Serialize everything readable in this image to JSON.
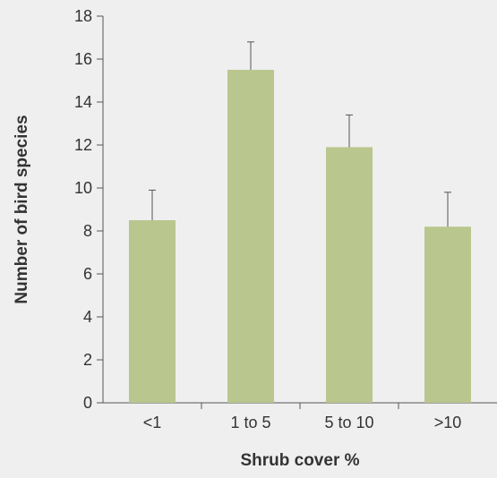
{
  "chart_data": {
    "type": "bar",
    "title": "",
    "xlabel": "Shrub cover %",
    "ylabel": "Number of bird species",
    "categories": [
      "<1",
      "1 to 5",
      "5 to 10",
      ">10"
    ],
    "values": [
      8.5,
      15.5,
      11.9,
      8.2
    ],
    "error_upper": [
      9.9,
      16.8,
      13.4,
      9.8
    ],
    "ylim": [
      0,
      18
    ],
    "yticks": [
      0,
      2,
      4,
      6,
      8,
      10,
      12,
      14,
      16,
      18
    ],
    "ytick_labels": [
      "0",
      "2",
      "4",
      "6",
      "8",
      "10",
      "12",
      "14",
      "16",
      "18"
    ],
    "grid": false,
    "bar_color": "#b9c68e",
    "axis_color": "#555555",
    "background_color": "#efefef"
  }
}
